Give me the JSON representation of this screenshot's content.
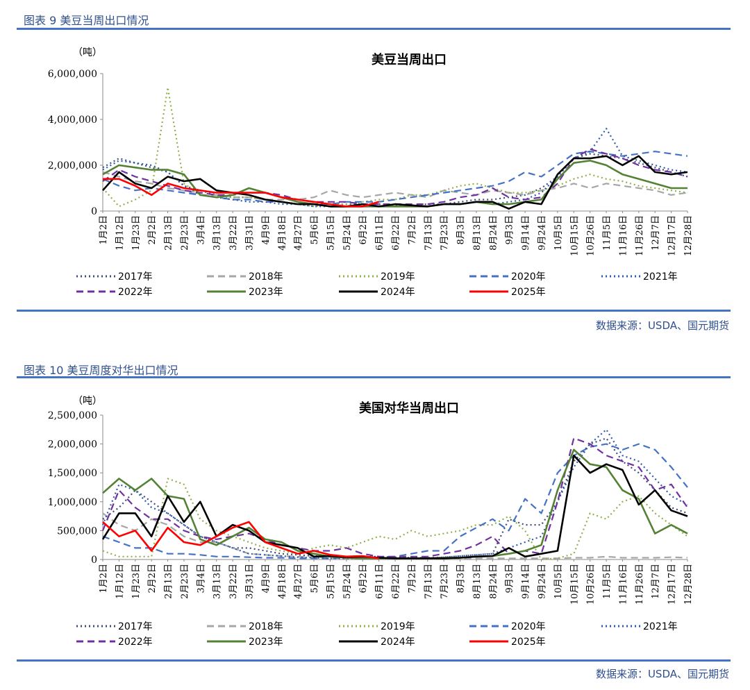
{
  "figures": [
    {
      "caption": "图表 9  美豆当周出口情况",
      "source": "数据来源：USDA、国元期货",
      "unit": "（吨）"
    },
    {
      "caption": "图表 10  美豆周度对华出口情况",
      "source": "数据来源：USDA、国元期货",
      "unit": "（吨）"
    }
  ],
  "legend_styles": {
    "2017年": {
      "color": "#3e4c7a",
      "dash": "2,4"
    },
    "2018年": {
      "color": "#a6a6a6",
      "dash": "10,6"
    },
    "2019年": {
      "color": "#8fb04a",
      "dash": "2,4"
    },
    "2020年": {
      "color": "#4472c4",
      "dash": "10,6"
    },
    "2021年": {
      "color": "#2e5aac",
      "dash": "2,4"
    },
    "2022年": {
      "color": "#7030a0",
      "dash": "10,6"
    },
    "2023年": {
      "color": "#548235",
      "dash": ""
    },
    "2024年": {
      "color": "#000000",
      "dash": ""
    },
    "2025年": {
      "color": "#ff0000",
      "dash": ""
    }
  },
  "chart_data": [
    {
      "type": "line",
      "title": "美豆当周出口",
      "ylim": [
        0,
        6000000
      ],
      "yticks": [
        "6,000,000",
        "4,000,000",
        "2,000,000",
        "0"
      ],
      "ytick_values": [
        6000000,
        4000000,
        2000000,
        0
      ],
      "xtick_labels": [
        "1月2日",
        "1月12日",
        "1月23日",
        "2月2日",
        "2月13日",
        "2月23日",
        "3月4日",
        "3月13日",
        "3月22日",
        "3月31日",
        "4月9日",
        "4月18日",
        "4月27日",
        "5月6日",
        "5月15日",
        "5月24日",
        "6月2日",
        "6月11日",
        "6月22日",
        "7月2日",
        "7月13日",
        "7月23日",
        "8月3日",
        "8月13日",
        "8月24日",
        "9月3日",
        "9月14日",
        "9月24日",
        "10月5日",
        "10月15日",
        "10月26日",
        "11月5日",
        "11月16日",
        "11月26日",
        "12月7日",
        "12月17日",
        "12月28日"
      ],
      "grid": false,
      "legend": "bottom",
      "series": [
        {
          "name": "2017年",
          "values": [
            1900000,
            2300000,
            2100000,
            1900000,
            1700000,
            1100000,
            900000,
            700000,
            600000,
            600000,
            500000,
            400000,
            300000,
            300000,
            300000,
            300000,
            300000,
            300000,
            250000,
            250000,
            300000,
            300000,
            400000,
            500000,
            500000,
            600000,
            700000,
            1000000,
            1500000,
            2300000,
            2500000,
            2400000,
            2300000,
            2100000,
            1900000,
            1700000,
            1500000
          ]
        },
        {
          "name": "2018年",
          "values": [
            1700000,
            1500000,
            1300000,
            1200000,
            1000000,
            900000,
            700000,
            700000,
            600000,
            600000,
            500000,
            500000,
            500000,
            600000,
            900000,
            700000,
            600000,
            700000,
            800000,
            700000,
            600000,
            900000,
            800000,
            700000,
            900000,
            800000,
            700000,
            900000,
            1000000,
            1200000,
            1000000,
            1200000,
            1100000,
            1000000,
            900000,
            700000,
            800000
          ]
        },
        {
          "name": "2019年",
          "values": [
            1000000,
            200000,
            500000,
            900000,
            5400000,
            1200000,
            700000,
            600000,
            600000,
            600000,
            500000,
            400000,
            300000,
            200000,
            300000,
            300000,
            400000,
            500000,
            500000,
            700000,
            700000,
            900000,
            1100000,
            1200000,
            1000000,
            800000,
            800000,
            900000,
            1100000,
            1400000,
            1600000,
            1400000,
            1300000,
            1100000,
            1000000,
            900000,
            800000
          ]
        },
        {
          "name": "2020年",
          "values": [
            1400000,
            1100000,
            900000,
            1000000,
            900000,
            800000,
            700000,
            600000,
            500000,
            500000,
            400000,
            400000,
            300000,
            300000,
            300000,
            400000,
            400000,
            400000,
            500000,
            600000,
            700000,
            800000,
            900000,
            1000000,
            1100000,
            1300000,
            1700000,
            1500000,
            2000000,
            2500000,
            2600000,
            2500000,
            2400000,
            2500000,
            2600000,
            2500000,
            2400000
          ]
        },
        {
          "name": "2021年",
          "values": [
            1800000,
            2200000,
            2100000,
            2000000,
            1700000,
            1100000,
            700000,
            600000,
            500000,
            400000,
            400000,
            300000,
            300000,
            200000,
            200000,
            200000,
            200000,
            200000,
            200000,
            200000,
            200000,
            300000,
            300000,
            400000,
            300000,
            400000,
            500000,
            800000,
            1500000,
            2300000,
            2600000,
            3600000,
            2400000,
            2200000,
            2000000,
            1800000,
            1700000
          ]
        },
        {
          "name": "2022年",
          "values": [
            1300000,
            1800000,
            1500000,
            1300000,
            1100000,
            900000,
            800000,
            700000,
            700000,
            800000,
            800000,
            700000,
            500000,
            400000,
            400000,
            400000,
            300000,
            300000,
            300000,
            300000,
            300000,
            400000,
            600000,
            700000,
            1000000,
            600000,
            500000,
            600000,
            1200000,
            2300000,
            2700000,
            2500000,
            2300000,
            2000000,
            1800000,
            1700000,
            1500000
          ]
        },
        {
          "name": "2023年",
          "values": [
            1600000,
            2000000,
            1900000,
            1800000,
            1800000,
            1600000,
            700000,
            600000,
            700000,
            1000000,
            800000,
            600000,
            400000,
            300000,
            200000,
            200000,
            200000,
            200000,
            200000,
            200000,
            200000,
            300000,
            300000,
            400000,
            300000,
            300000,
            400000,
            500000,
            1400000,
            2100000,
            2200000,
            2000000,
            1600000,
            1400000,
            1200000,
            1000000,
            1000000
          ]
        },
        {
          "name": "2024年",
          "values": [
            900000,
            1700000,
            1200000,
            1000000,
            1500000,
            1300000,
            1400000,
            900000,
            800000,
            700000,
            500000,
            400000,
            300000,
            300000,
            200000,
            200000,
            300000,
            200000,
            300000,
            250000,
            200000,
            300000,
            300000,
            400000,
            400000,
            100000,
            400000,
            300000,
            1600000,
            2300000,
            2300000,
            2400000,
            2000000,
            2400000,
            1700000,
            1600000,
            1700000
          ]
        },
        {
          "name": "2025年",
          "values": [
            1400000,
            1400000,
            1100000,
            700000,
            1200000,
            1000000,
            900000,
            800000,
            800000,
            800000,
            800000,
            600000,
            500000,
            400000,
            300000,
            200000,
            200000,
            400000,
            null,
            null,
            null,
            null,
            null,
            null,
            null,
            null,
            null,
            null,
            null,
            null,
            null,
            null,
            null,
            null,
            null,
            null,
            null
          ]
        }
      ]
    },
    {
      "type": "line",
      "title": "美国对华当周出口",
      "ylim": [
        0,
        2500000
      ],
      "yticks": [
        "2,500,000",
        "2,000,000",
        "1,500,000",
        "1,000,000",
        "500,000",
        "0"
      ],
      "ytick_values": [
        2500000,
        2000000,
        1500000,
        1000000,
        500000,
        0
      ],
      "xtick_labels": [
        "1月2日",
        "1月12日",
        "1月23日",
        "2月2日",
        "2月13日",
        "2月23日",
        "3月4日",
        "3月13日",
        "3月22日",
        "3月31日",
        "4月9日",
        "4月18日",
        "4月27日",
        "5月6日",
        "5月15日",
        "5月24日",
        "6月2日",
        "6月11日",
        "6月22日",
        "7月2日",
        "7月13日",
        "7月23日",
        "8月3日",
        "8月13日",
        "8月24日",
        "9月3日",
        "9月14日",
        "9月24日",
        "10月5日",
        "10月15日",
        "10月26日",
        "11月5日",
        "11月16日",
        "11月26日",
        "12月7日",
        "12月17日",
        "12月28日"
      ],
      "grid": false,
      "legend": "bottom",
      "series": [
        {
          "name": "2017年",
          "values": [
            700000,
            900000,
            1200000,
            1000000,
            800000,
            600000,
            400000,
            300000,
            200000,
            200000,
            150000,
            100000,
            80000,
            60000,
            50000,
            50000,
            50000,
            50000,
            40000,
            30000,
            30000,
            40000,
            60000,
            80000,
            100000,
            700000,
            600000,
            600000,
            1000000,
            1700000,
            2000000,
            2100000,
            1700000,
            1500000,
            1200000,
            900000,
            800000
          ]
        },
        {
          "name": "2018年",
          "values": [
            800000,
            600000,
            500000,
            700000,
            600000,
            400000,
            300000,
            300000,
            200000,
            100000,
            80000,
            60000,
            50000,
            40000,
            30000,
            20000,
            20000,
            20000,
            20000,
            20000,
            20000,
            20000,
            20000,
            20000,
            20000,
            20000,
            20000,
            20000,
            20000,
            30000,
            30000,
            50000,
            30000,
            30000,
            30000,
            40000,
            30000
          ]
        },
        {
          "name": "2019年",
          "values": [
            150000,
            50000,
            50000,
            50000,
            1400000,
            1300000,
            700000,
            500000,
            400000,
            300000,
            200000,
            150000,
            100000,
            200000,
            250000,
            200000,
            300000,
            400000,
            350000,
            500000,
            400000,
            450000,
            500000,
            600000,
            600000,
            750000,
            500000,
            0,
            20000,
            100000,
            800000,
            700000,
            1000000,
            1100000,
            800000,
            600000,
            400000
          ]
        },
        {
          "name": "2020年",
          "values": [
            400000,
            300000,
            200000,
            200000,
            100000,
            100000,
            80000,
            50000,
            50000,
            40000,
            30000,
            30000,
            20000,
            20000,
            20000,
            30000,
            40000,
            40000,
            50000,
            100000,
            150000,
            150000,
            400000,
            550000,
            700000,
            500000,
            1050000,
            800000,
            1500000,
            1800000,
            1950000,
            2000000,
            1900000,
            2000000,
            1900000,
            1600000,
            1250000
          ]
        },
        {
          "name": "2021年",
          "values": [
            600000,
            1300000,
            1200000,
            900000,
            800000,
            600000,
            400000,
            300000,
            200000,
            100000,
            80000,
            60000,
            40000,
            30000,
            20000,
            20000,
            20000,
            20000,
            20000,
            20000,
            20000,
            40000,
            60000,
            80000,
            100000,
            200000,
            300000,
            400000,
            1000000,
            1600000,
            2000000,
            2250000,
            1800000,
            1700000,
            1400000,
            1100000,
            950000
          ]
        },
        {
          "name": "2022年",
          "values": [
            500000,
            1200000,
            900000,
            700000,
            700000,
            500000,
            400000,
            350000,
            400000,
            450000,
            350000,
            250000,
            200000,
            150000,
            150000,
            200000,
            100000,
            50000,
            50000,
            50000,
            50000,
            100000,
            150000,
            250000,
            400000,
            100000,
            150000,
            100000,
            1000000,
            2100000,
            2000000,
            1800000,
            1700000,
            1600000,
            1200000,
            1300000,
            900000
          ]
        },
        {
          "name": "2023年",
          "values": [
            1150000,
            1400000,
            1200000,
            1400000,
            1100000,
            1050000,
            350000,
            250000,
            400000,
            550000,
            350000,
            300000,
            150000,
            100000,
            50000,
            30000,
            20000,
            20000,
            20000,
            20000,
            20000,
            30000,
            30000,
            50000,
            60000,
            100000,
            150000,
            250000,
            1200000,
            1900000,
            1650000,
            1600000,
            1200000,
            1050000,
            450000,
            600000,
            450000
          ]
        },
        {
          "name": "2024年",
          "values": [
            350000,
            800000,
            800000,
            400000,
            1100000,
            650000,
            1000000,
            400000,
            600000,
            500000,
            300000,
            250000,
            200000,
            50000,
            60000,
            40000,
            50000,
            30000,
            20000,
            20000,
            20000,
            20000,
            30000,
            50000,
            60000,
            200000,
            50000,
            100000,
            150000,
            1800000,
            1500000,
            1650000,
            1550000,
            950000,
            1200000,
            850000,
            750000
          ]
        },
        {
          "name": "2025年",
          "values": [
            650000,
            400000,
            500000,
            150000,
            550000,
            300000,
            250000,
            400000,
            550000,
            650000,
            300000,
            200000,
            100000,
            150000,
            80000,
            50000,
            60000,
            20000,
            null,
            null,
            null,
            null,
            null,
            null,
            null,
            null,
            null,
            null,
            null,
            null,
            null,
            null,
            null,
            null,
            null,
            null,
            null
          ]
        }
      ]
    }
  ]
}
